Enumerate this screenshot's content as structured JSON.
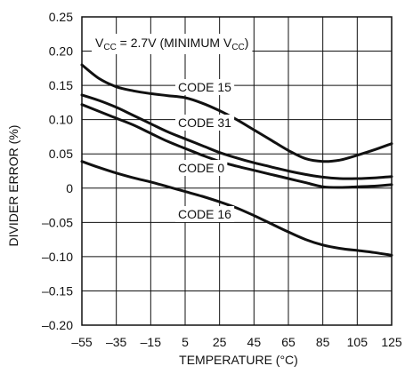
{
  "chart_data": {
    "type": "line",
    "title": "",
    "xlabel": "TEMPERATURE (°C)",
    "ylabel": "DIVIDER ERROR (%)",
    "xlim": [
      -55,
      125
    ],
    "ylim": [
      -0.2,
      0.25
    ],
    "xticks": [
      "–55",
      "–35",
      "–15",
      "5",
      "25",
      "45",
      "65",
      "85",
      "105",
      "125"
    ],
    "yticks": [
      "0.25",
      "0.20",
      "0.15",
      "0.10",
      "0.05",
      "0",
      "–0.05",
      "–0.10",
      "–0.15",
      "–0.20"
    ],
    "grid": true,
    "annotation": {
      "prefix": "V",
      "prefix_sub": "CC",
      "middle": " = 2.7V (MINIMUM V",
      "middle_sub": "CC",
      "suffix": ")"
    },
    "series": [
      {
        "name": "CODE 15",
        "x": [
          -55,
          -45,
          -35,
          -25,
          -15,
          -5,
          5,
          15,
          25,
          35,
          45,
          55,
          65,
          75,
          85,
          95,
          105,
          115,
          125
        ],
        "y": [
          0.18,
          0.16,
          0.148,
          0.142,
          0.138,
          0.135,
          0.132,
          0.124,
          0.113,
          0.1,
          0.085,
          0.07,
          0.055,
          0.043,
          0.039,
          0.041,
          0.048,
          0.056,
          0.065
        ]
      },
      {
        "name": "CODE 31",
        "x": [
          -55,
          -45,
          -35,
          -25,
          -15,
          -5,
          5,
          15,
          25,
          35,
          45,
          55,
          65,
          75,
          85,
          95,
          105,
          115,
          125
        ],
        "y": [
          0.136,
          0.128,
          0.118,
          0.106,
          0.094,
          0.082,
          0.072,
          0.062,
          0.052,
          0.044,
          0.037,
          0.031,
          0.025,
          0.02,
          0.016,
          0.014,
          0.014,
          0.015,
          0.017
        ]
      },
      {
        "name": "CODE 0",
        "x": [
          -55,
          -45,
          -35,
          -25,
          -15,
          -5,
          5,
          15,
          25,
          35,
          45,
          55,
          65,
          75,
          85,
          95,
          105,
          115,
          125
        ],
        "y": [
          0.122,
          0.112,
          0.102,
          0.092,
          0.08,
          0.068,
          0.058,
          0.048,
          0.039,
          0.032,
          0.026,
          0.02,
          0.014,
          0.008,
          0.002,
          0.001,
          0.002,
          0.003,
          0.005
        ]
      },
      {
        "name": "CODE 16",
        "x": [
          -55,
          -45,
          -35,
          -25,
          -15,
          -5,
          5,
          15,
          25,
          35,
          45,
          55,
          65,
          75,
          85,
          95,
          105,
          115,
          125
        ],
        "y": [
          0.039,
          0.03,
          0.022,
          0.015,
          0.009,
          0.002,
          -0.005,
          -0.012,
          -0.02,
          -0.029,
          -0.04,
          -0.052,
          -0.064,
          -0.075,
          -0.083,
          -0.088,
          -0.091,
          -0.094,
          -0.098
        ]
      }
    ]
  }
}
